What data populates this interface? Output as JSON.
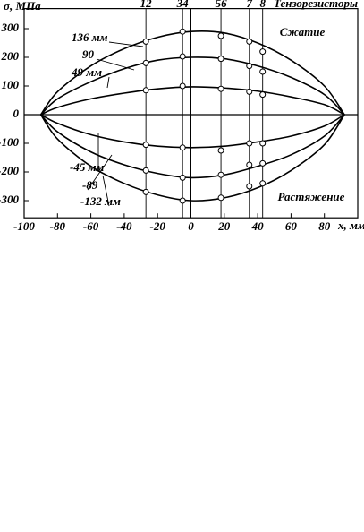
{
  "chart_data": {
    "type": "line",
    "y_label": "σ, МПа",
    "x_label": "x, мм",
    "annotations": [
      "Сжатие",
      "Растяжение"
    ],
    "sensors_title": "Тензорезисторы",
    "sensors": [
      {
        "label": "12",
        "x": -27
      },
      {
        "label": "34",
        "x": -5
      },
      {
        "label": "56",
        "x": 18
      },
      {
        "label": "7",
        "x": 35
      },
      {
        "label": "8",
        "x": 43
      }
    ],
    "x": [
      -90,
      -80,
      -60,
      -40,
      -20,
      0,
      20,
      40,
      60,
      80,
      92
    ],
    "marker_x": [
      -27,
      -5,
      18,
      35,
      43
    ],
    "series": [
      {
        "name": "136 мм",
        "color": "#000000",
        "values": [
          0,
          80,
          170,
          230,
          270,
          290,
          285,
          250,
          190,
          100,
          0
        ],
        "points": [
          255,
          290,
          275,
          255,
          220
        ]
      },
      {
        "name": "90",
        "color": "#000000",
        "values": [
          0,
          55,
          115,
          160,
          190,
          200,
          195,
          170,
          130,
          70,
          0
        ],
        "points": [
          180,
          203,
          195,
          170,
          150
        ]
      },
      {
        "name": "49 мм",
        "color": "#000000",
        "values": [
          0,
          25,
          55,
          75,
          90,
          97,
          93,
          82,
          62,
          35,
          0
        ],
        "points": [
          85,
          100,
          90,
          80,
          70
        ]
      },
      {
        "name": "-45 мм",
        "color": "#000000",
        "values": [
          0,
          -30,
          -70,
          -95,
          -110,
          -115,
          -110,
          -95,
          -75,
          -40,
          0
        ],
        "points": [
          -105,
          -115,
          -125,
          -100,
          -100
        ]
      },
      {
        "name": "-89",
        "color": "#000000",
        "values": [
          0,
          -60,
          -130,
          -175,
          -205,
          -220,
          -210,
          -180,
          -140,
          -75,
          0
        ],
        "points": [
          -195,
          -220,
          -210,
          -175,
          -170
        ]
      },
      {
        "name": "-132 мм",
        "color": "#000000",
        "values": [
          0,
          -85,
          -180,
          -240,
          -280,
          -300,
          -290,
          -255,
          -195,
          -105,
          0
        ],
        "points": [
          -270,
          -300,
          -290,
          -250,
          -240
        ]
      }
    ],
    "xlim": [
      -100,
      100
    ],
    "ylim": [
      -360,
      370
    ],
    "xticks": [
      -100,
      -80,
      -60,
      -40,
      -20,
      0,
      20,
      40,
      60,
      80
    ],
    "yticks": [
      300,
      200,
      100,
      0,
      -100,
      -200,
      -300
    ]
  }
}
